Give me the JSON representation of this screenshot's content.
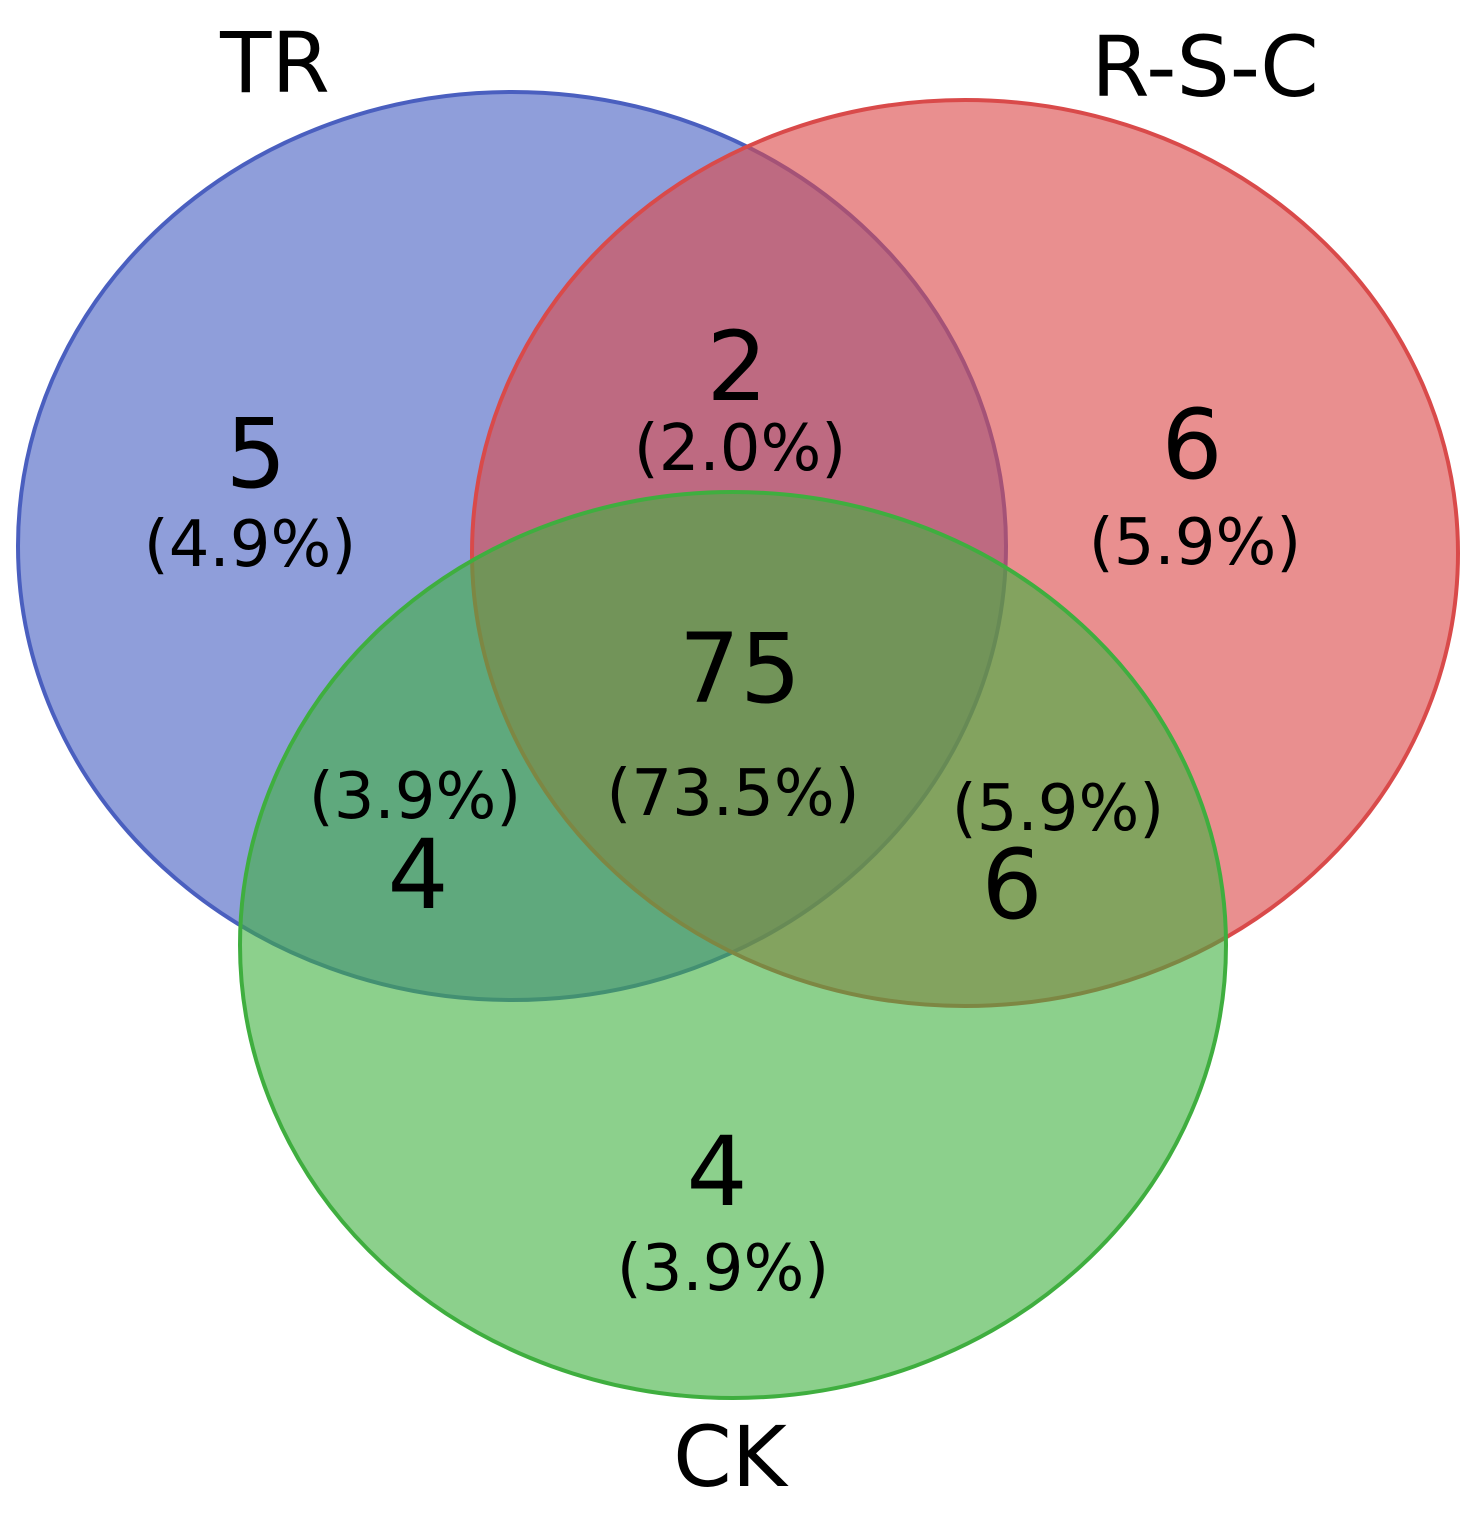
{
  "sets": [
    {
      "id": "tr",
      "label": "TR",
      "fill": "#8b9cd8",
      "stroke": "#4a5fbf"
    },
    {
      "id": "rsc",
      "label": "R-S-C",
      "fill": "#e87878",
      "stroke": "#d94a4a"
    },
    {
      "id": "ck",
      "label": "CK",
      "fill": "#6fc46f",
      "stroke": "#3fae3f"
    }
  ],
  "regions": {
    "tr_only": {
      "count": "5",
      "percent": "(4.9%)"
    },
    "rsc_only": {
      "count": "6",
      "percent": "(5.9%)"
    },
    "ck_only": {
      "count": "4",
      "percent": "(3.9%)"
    },
    "tr_rsc": {
      "count": "2",
      "percent": "(2.0%)"
    },
    "tr_ck": {
      "count": "4",
      "percent": "(3.9%)"
    },
    "rsc_ck": {
      "count": "6",
      "percent": "(5.9%)"
    },
    "all": {
      "count": "75",
      "percent": "(73.5%)"
    }
  }
}
